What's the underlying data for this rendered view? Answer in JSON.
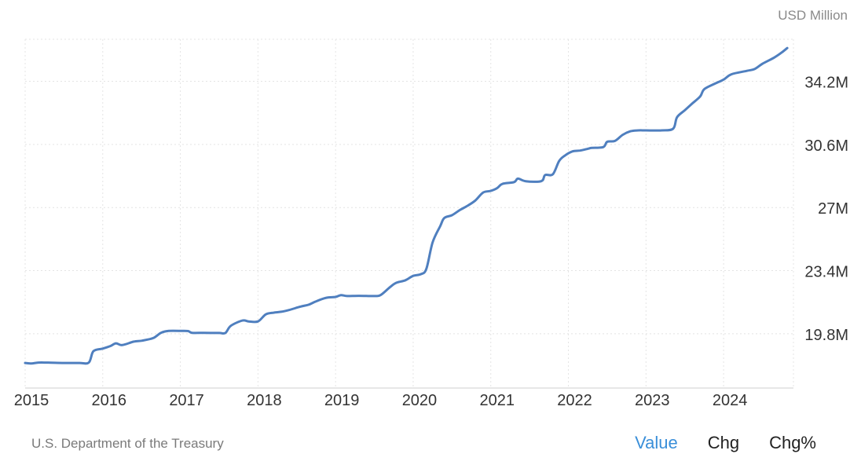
{
  "unit_label": "USD Million",
  "source": "U.S. Department of the Treasury",
  "toggles": [
    {
      "label": "Value",
      "active": true
    },
    {
      "label": "Chg",
      "active": false
    },
    {
      "label": "Chg%",
      "active": false
    }
  ],
  "colors": {
    "line": "#4f7fbf",
    "active_toggle": "#3a8fd9",
    "grid": "#e4e4e4"
  },
  "chart_data": {
    "type": "line",
    "title": "",
    "xlabel": "",
    "ylabel": "",
    "unit": "USD Million",
    "grid": true,
    "x_ticks": [
      "2015",
      "2016",
      "2017",
      "2018",
      "2019",
      "2020",
      "2021",
      "2022",
      "2023",
      "2024"
    ],
    "y_ticks": [
      "19.8M",
      "23.4M",
      "27M",
      "30.6M",
      "34.2M"
    ],
    "y_tick_values": [
      19800000,
      23400000,
      27000000,
      30600000,
      34200000
    ],
    "ylim": [
      16700000,
      36600000
    ],
    "xlim": [
      2015.0,
      2024.9
    ],
    "series": [
      {
        "x": [
          2015.0,
          2015.08,
          2015.17,
          2015.3,
          2015.5,
          2015.7,
          2015.82,
          2015.88,
          2016.0,
          2016.1,
          2016.17,
          2016.25,
          2016.4,
          2016.5,
          2016.65,
          2016.75,
          2016.85,
          2017.0,
          2017.1,
          2017.15,
          2017.3,
          2017.5,
          2017.58,
          2017.65,
          2017.8,
          2017.88,
          2018.0,
          2018.1,
          2018.2,
          2018.3,
          2018.4,
          2018.55,
          2018.65,
          2018.75,
          2018.88,
          2019.0,
          2019.07,
          2019.15,
          2019.3,
          2019.5,
          2019.58,
          2019.7,
          2019.78,
          2019.9,
          2020.0,
          2020.1,
          2020.17,
          2020.25,
          2020.35,
          2020.4,
          2020.5,
          2020.6,
          2020.7,
          2020.8,
          2020.9,
          2021.0,
          2021.08,
          2021.15,
          2021.3,
          2021.35,
          2021.45,
          2021.65,
          2021.7,
          2021.8,
          2021.88,
          2021.95,
          2022.05,
          2022.15,
          2022.25,
          2022.3,
          2022.45,
          2022.5,
          2022.6,
          2022.7,
          2022.8,
          2022.9,
          2023.0,
          2023.2,
          2023.35,
          2023.4,
          2023.5,
          2023.6,
          2023.7,
          2023.75,
          2023.88,
          2024.0,
          2024.1,
          2024.3,
          2024.4,
          2024.5,
          2024.65,
          2024.75,
          2024.82
        ],
        "values": [
          18130000,
          18100000,
          18150000,
          18150000,
          18130000,
          18130000,
          18150000,
          18800000,
          18950000,
          19100000,
          19250000,
          19150000,
          19350000,
          19400000,
          19550000,
          19850000,
          19960000,
          19960000,
          19950000,
          19850000,
          19850000,
          19840000,
          19840000,
          20250000,
          20550000,
          20500000,
          20500000,
          20900000,
          21000000,
          21050000,
          21150000,
          21350000,
          21450000,
          21650000,
          21850000,
          21900000,
          22000000,
          21950000,
          21960000,
          21950000,
          22000000,
          22450000,
          22700000,
          22850000,
          23100000,
          23200000,
          23500000,
          25000000,
          25950000,
          26400000,
          26560000,
          26850000,
          27100000,
          27400000,
          27850000,
          27950000,
          28100000,
          28350000,
          28450000,
          28650000,
          28500000,
          28500000,
          28850000,
          28900000,
          29650000,
          29950000,
          30200000,
          30250000,
          30350000,
          30400000,
          30450000,
          30750000,
          30800000,
          31150000,
          31350000,
          31400000,
          31400000,
          31400000,
          31500000,
          32150000,
          32550000,
          32950000,
          33350000,
          33750000,
          34050000,
          34300000,
          34600000,
          34800000,
          34900000,
          35200000,
          35550000,
          35850000,
          36100000
        ]
      }
    ]
  }
}
